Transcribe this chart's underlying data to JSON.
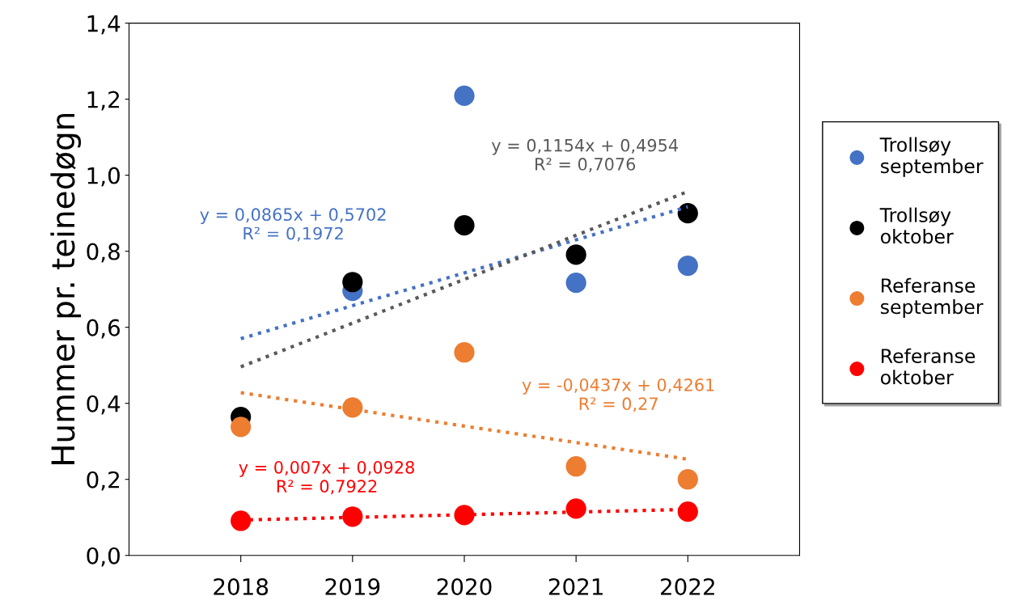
{
  "chart_data": {
    "type": "scatter",
    "ylabel": "Hummer pr. teinedøgn",
    "x": [
      2018,
      2019,
      2020,
      2021,
      2022
    ],
    "xlim": [
      2017,
      2023
    ],
    "xticks": [
      2018,
      2019,
      2020,
      2021,
      2022
    ],
    "ylim": [
      0,
      1.4
    ],
    "yticks": [
      {
        "value": 0,
        "label": "0,0"
      },
      {
        "value": 0.2,
        "label": "0,2"
      },
      {
        "value": 0.4,
        "label": "0,4"
      },
      {
        "value": 0.6,
        "label": "0,6"
      },
      {
        "value": 0.8,
        "label": "0,8"
      },
      {
        "value": 1.0,
        "label": "1,0"
      },
      {
        "value": 1.2,
        "label": "1,2"
      },
      {
        "value": 1.4,
        "label": "1,4"
      }
    ],
    "grid": false,
    "legend": "right",
    "series": [
      {
        "name": "Trollsøy september",
        "color": "#4472c4",
        "marker": "circle",
        "values": [
          null,
          0.696,
          1.209,
          0.717,
          0.762
        ]
      },
      {
        "name": "Trollsøy oktober",
        "color": "#000000",
        "marker": "circle",
        "values": [
          0.364,
          0.719,
          0.868,
          0.791,
          0.9
        ]
      },
      {
        "name": "Referanse september",
        "color": "#ed7d31",
        "marker": "circle",
        "values": [
          0.338,
          0.389,
          0.534,
          0.234,
          0.2
        ]
      },
      {
        "name": "Referanse oktober",
        "color": "#ff0000",
        "marker": "circle",
        "values": [
          0.091,
          0.102,
          0.106,
          0.123,
          0.115
        ]
      },
      {
        "type": "line",
        "line_style": "dotted",
        "color": "#4472c4",
        "values": [
          0.57,
          0.657,
          0.743,
          0.83,
          0.917
        ]
      },
      {
        "type": "line",
        "line_style": "dotted",
        "color": "#595959",
        "values": [
          0.496,
          0.611,
          0.726,
          0.842,
          0.957
        ]
      },
      {
        "type": "line",
        "line_style": "dotted",
        "color": "#ed7d31",
        "values": [
          0.428,
          0.384,
          0.34,
          0.297,
          0.253
        ]
      },
      {
        "type": "line",
        "line_style": "dotted",
        "color": "#ff0000",
        "values": [
          0.093,
          0.1,
          0.107,
          0.114,
          0.121
        ]
      }
    ],
    "annotations": [
      "y = 0,0865x + 0,5702\nR² = 0,1972",
      "y = 0,1154x + 0,4954\nR² = 0,7076",
      "y = -0,0437x + 0,4261\nR² = 0,27",
      "y = 0,007x + 0,0928\nR² = 0,7922"
    ]
  }
}
